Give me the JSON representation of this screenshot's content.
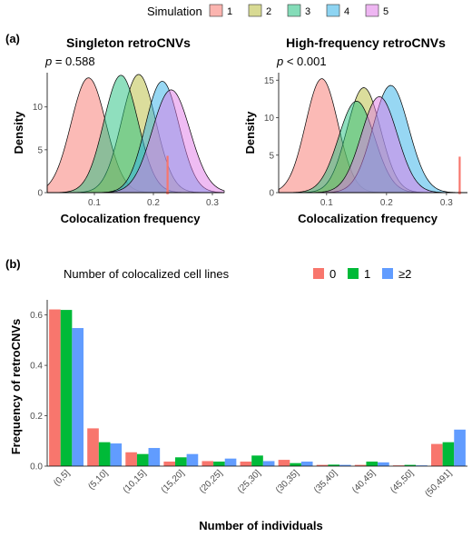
{
  "panel_a_tag": "(a)",
  "panel_b_tag": "(b)",
  "chart_data": [
    {
      "type": "area",
      "title": "Singleton retroCNVs",
      "annotation_p": "p",
      "annotation_rest": " = 0.588",
      "xlabel": "Colocalization frequency",
      "ylabel": "Density",
      "xlim": [
        0.02,
        0.32
      ],
      "ylim": [
        0,
        14
      ],
      "xticks": [
        "0.1",
        "0.2",
        "0.3"
      ],
      "xtick_values": [
        0.1,
        0.2,
        0.3
      ],
      "yticks": [
        "0",
        "5",
        "10"
      ],
      "ytick_values": [
        0,
        5,
        10
      ],
      "observed_value": 0.224,
      "observed_height": 4.3,
      "observed_color": "#f8766d",
      "legend_title": "Simulation",
      "series": [
        {
          "name": "1",
          "color": "#f8766d",
          "mean": 0.09,
          "sd": 0.0295,
          "peak": 13.4
        },
        {
          "name": "2",
          "color": "#b8bc3a",
          "mean": 0.175,
          "sd": 0.029,
          "peak": 13.8
        },
        {
          "name": "3",
          "color": "#1fbf7e",
          "mean": 0.145,
          "sd": 0.029,
          "peak": 13.7
        },
        {
          "name": "4",
          "color": "#30b0e8",
          "mean": 0.215,
          "sd": 0.0285,
          "peak": 13.0
        },
        {
          "name": "5",
          "color": "#e07ae8",
          "mean": 0.23,
          "sd": 0.032,
          "peak": 12.0
        }
      ]
    },
    {
      "type": "area",
      "title": "High-frequency retroCNVs",
      "annotation_p": "p",
      "annotation_rest": " < 0.001",
      "xlabel": "Colocalization frequency",
      "ylabel": "Density",
      "xlim": [
        0.02,
        0.335
      ],
      "ylim": [
        0,
        16
      ],
      "xticks": [
        "0.1",
        "0.2",
        "0.3"
      ],
      "xtick_values": [
        0.1,
        0.2,
        0.3
      ],
      "yticks": [
        "0",
        "5",
        "10",
        "15"
      ],
      "ytick_values": [
        0,
        5,
        10,
        15
      ],
      "observed_value": 0.322,
      "observed_height": 4.8,
      "observed_color": "#f8766d",
      "series": [
        {
          "name": "1",
          "color": "#f8766d",
          "mean": 0.092,
          "sd": 0.027,
          "peak": 15.2
        },
        {
          "name": "2",
          "color": "#b8bc3a",
          "mean": 0.162,
          "sd": 0.028,
          "peak": 14.0
        },
        {
          "name": "3",
          "color": "#1fbf7e",
          "mean": 0.15,
          "sd": 0.03,
          "peak": 12.2
        },
        {
          "name": "4",
          "color": "#30b0e8",
          "mean": 0.207,
          "sd": 0.03,
          "peak": 14.3
        },
        {
          "name": "5",
          "color": "#e07ae8",
          "mean": 0.188,
          "sd": 0.03,
          "peak": 12.8
        }
      ]
    },
    {
      "type": "bar",
      "legend_title": "Number of colocalized cell lines",
      "xlabel": "Number of individuals",
      "ylabel": "Frequency of retroCNVs",
      "ylim": [
        0,
        0.66
      ],
      "yticks": [
        "0.0",
        "0.2",
        "0.4",
        "0.6"
      ],
      "ytick_values": [
        0,
        0.2,
        0.4,
        0.6
      ],
      "categories": [
        "(0,5]",
        "(5,10]",
        "(10,15]",
        "(15,20]",
        "(20,25]",
        "(25,30]",
        "(30,35]",
        "(35,40]",
        "(40,45]",
        "(45,50]",
        "(50,491]"
      ],
      "series": [
        {
          "name": "0",
          "color": "#f8766d",
          "values": [
            0.622,
            0.15,
            0.055,
            0.018,
            0.02,
            0.018,
            0.025,
            0.005,
            0.005,
            0.003,
            0.088
          ]
        },
        {
          "name": "1",
          "color": "#00ba38",
          "values": [
            0.62,
            0.095,
            0.048,
            0.035,
            0.018,
            0.042,
            0.012,
            0.006,
            0.018,
            0.005,
            0.095
          ]
        },
        {
          "name": "≥2",
          "color": "#619cff",
          "values": [
            0.548,
            0.09,
            0.072,
            0.048,
            0.03,
            0.02,
            0.018,
            0.005,
            0.015,
            0.003,
            0.145
          ]
        }
      ]
    }
  ]
}
